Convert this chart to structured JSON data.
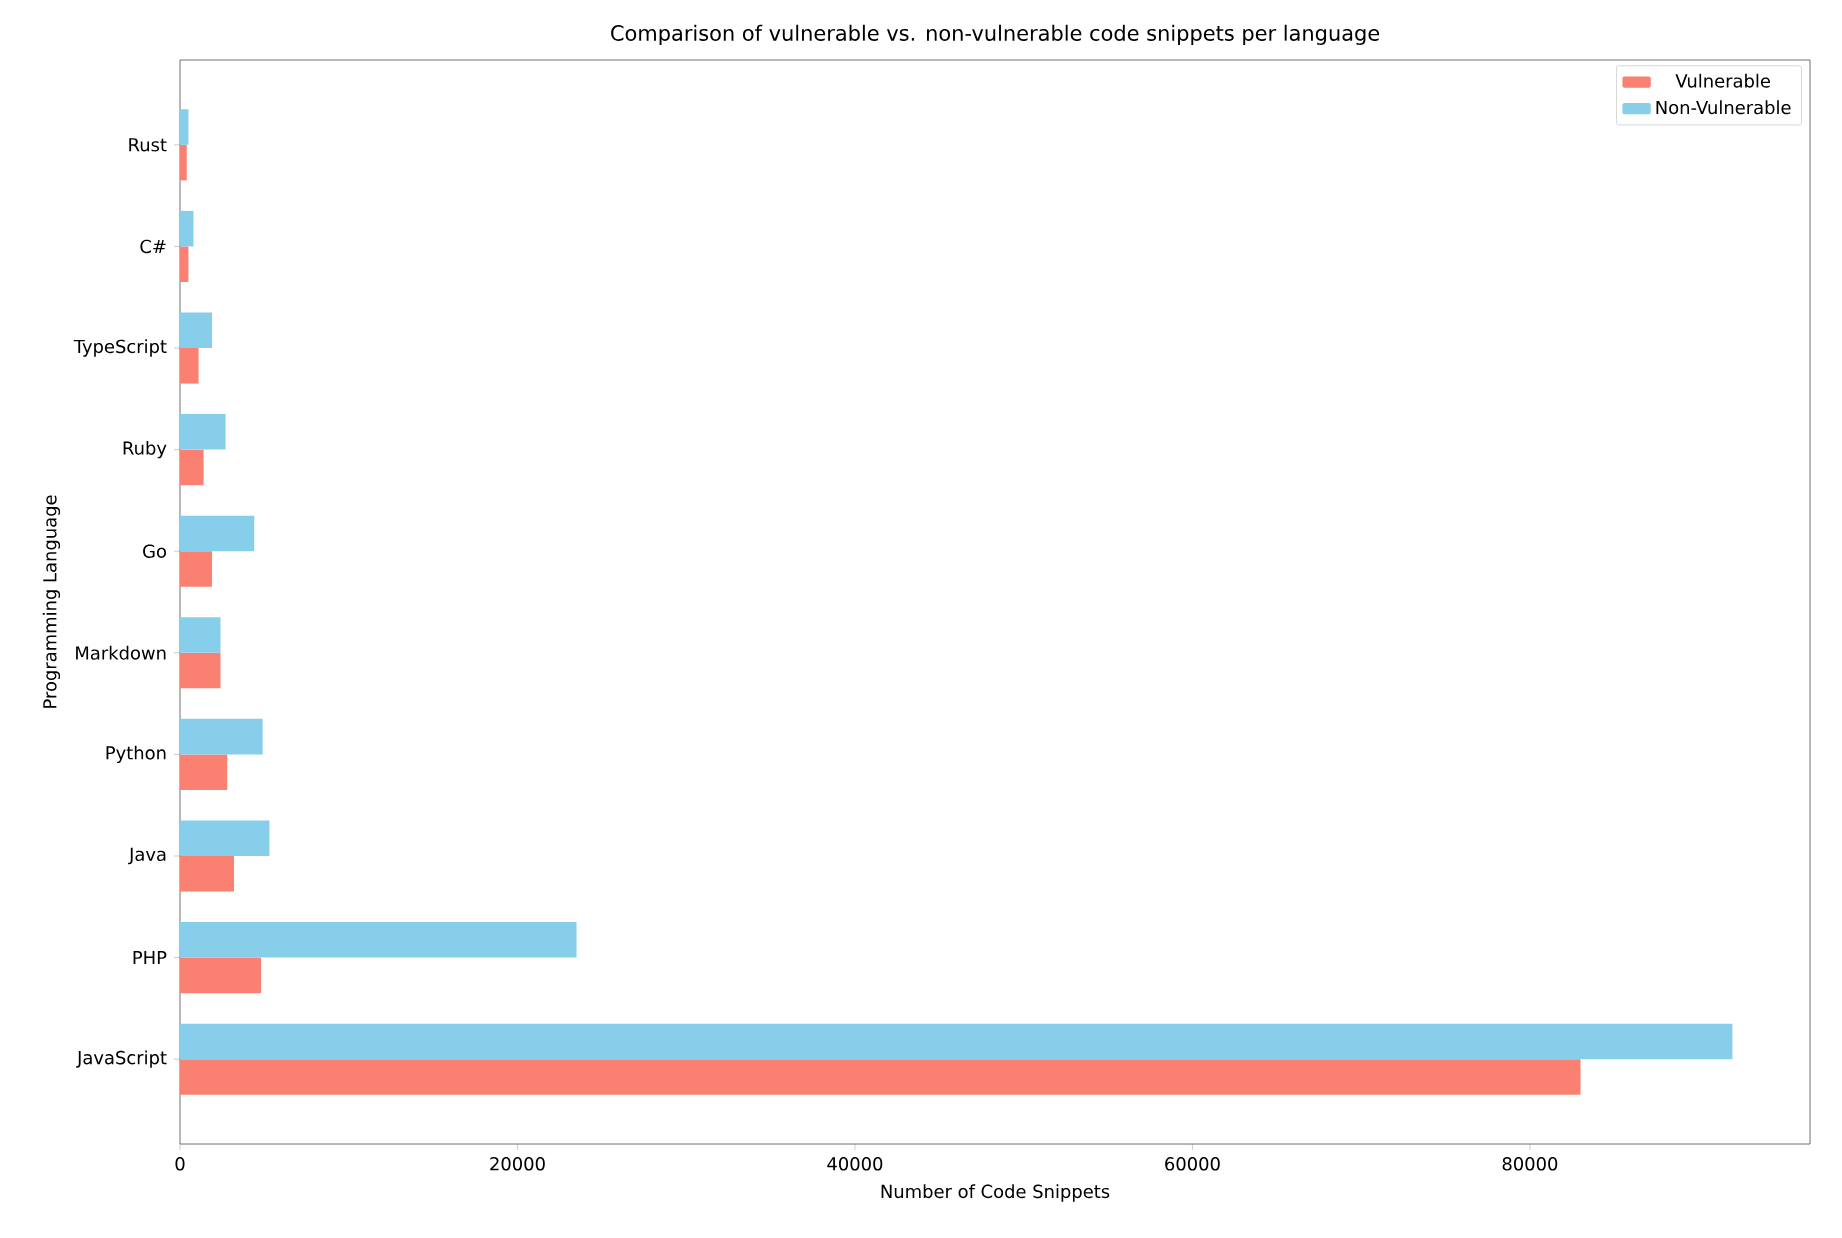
{
  "chart_data": {
    "type": "bar",
    "orientation": "horizontal",
    "title": "Comparison of vulnerable vs. non-vulnerable code snippets per language",
    "xlabel": "Number of Code Snippets",
    "ylabel": "Programming Language",
    "categories": [
      "Rust",
      "C#",
      "TypeScript",
      "Ruby",
      "Go",
      "Markdown",
      "Python",
      "Java",
      "PHP",
      "JavaScript"
    ],
    "series": [
      {
        "name": "Vulnerable",
        "color": "#fa8072",
        "values": [
          400,
          500,
          1100,
          1400,
          1900,
          2400,
          2800,
          3200,
          4800,
          83000
        ]
      },
      {
        "name": "Non-Vulnerable",
        "color": "#87ceeb",
        "values": [
          500,
          800,
          1900,
          2700,
          4400,
          2400,
          4900,
          5300,
          23500,
          92000
        ]
      }
    ],
    "xlim": [
      0,
      96600
    ],
    "xticks": [
      0,
      20000,
      40000,
      60000,
      80000
    ],
    "legend": "top right"
  }
}
